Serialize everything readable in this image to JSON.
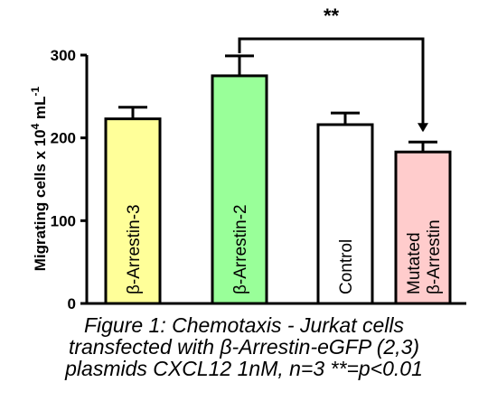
{
  "chart_data": {
    "type": "bar",
    "categories": [
      "β-Arrestin-3",
      "β-Arrestin-2",
      "Control",
      "Mutated β-Arrestin"
    ],
    "bar_labels": [
      [
        "β-Arrestin-3"
      ],
      [
        "β-Arrestin-2"
      ],
      [
        "Control"
      ],
      [
        "Mutated",
        "β-Arrestin"
      ]
    ],
    "values": [
      223,
      275,
      216,
      183
    ],
    "errors": [
      14,
      24,
      14,
      12
    ],
    "colors": [
      "#ffff99",
      "#99ff99",
      "#ffffff",
      "#ffcccc"
    ],
    "ylabel_parts": [
      "Migrating cells x 10",
      "4",
      " mL",
      "-1"
    ],
    "ylim": [
      0,
      300
    ],
    "yticks": [
      0,
      100,
      200,
      300
    ],
    "significance": {
      "between": [
        1,
        3
      ],
      "label": "**"
    },
    "grid": false,
    "legend": "none"
  },
  "caption": [
    "Figure 1: Chemotaxis - Jurkat cells",
    "transfected with β-Arrestin-eGFP (2,3)",
    "plasmids CXCL12 1nM, n=3 **=p<0.01"
  ]
}
